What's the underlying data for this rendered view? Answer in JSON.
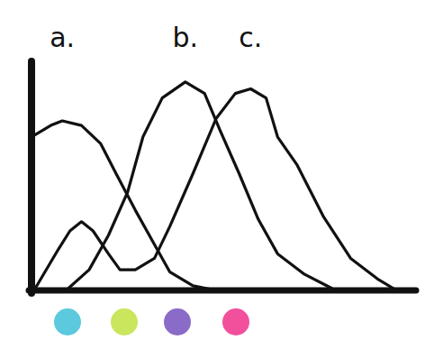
{
  "chart_data": {
    "type": "line",
    "tick_labels": false,
    "grid": false,
    "xlim": [
      0,
      100
    ],
    "ylim": [
      0,
      100
    ],
    "xticks": [],
    "yticks": [],
    "series": [
      {
        "name": "a.",
        "color": "#111111",
        "x": [
          0,
          5,
          8,
          13,
          18,
          22,
          27,
          32,
          36,
          42,
          48
        ],
        "values": [
          67,
          72,
          74,
          72,
          64,
          51,
          35,
          20,
          8,
          2,
          0
        ]
      },
      {
        "name": "b.",
        "color": "#111111",
        "x": [
          9,
          15,
          20,
          25,
          29,
          34,
          40,
          45,
          49,
          54,
          59,
          64,
          71,
          78
        ],
        "values": [
          0,
          9,
          24,
          43,
          67,
          84,
          91,
          86,
          70,
          51,
          31,
          16,
          7,
          1
        ]
      },
      {
        "name": "c.",
        "color": "#111111",
        "x": [
          1,
          7,
          10,
          13,
          16,
          20,
          23,
          27,
          32,
          36,
          42,
          48,
          53,
          57,
          61,
          64,
          69,
          76,
          83,
          90,
          95
        ],
        "values": [
          1,
          18,
          26,
          30,
          26,
          16,
          9,
          9,
          14,
          28,
          51,
          75,
          86,
          88,
          84,
          67,
          55,
          32,
          14,
          5,
          0
        ]
      }
    ]
  }
}
